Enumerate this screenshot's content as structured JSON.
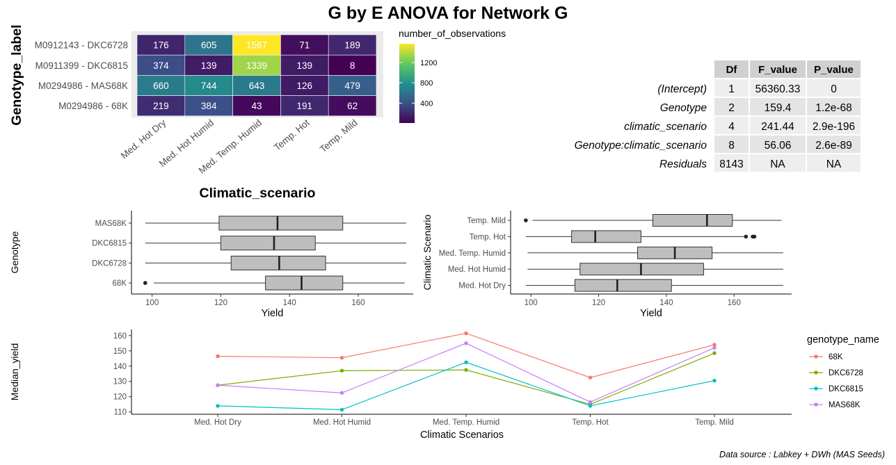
{
  "title": "G by E ANOVA for Network  G",
  "source_note": "Data source : Labkey + DWh (MAS Seeds)",
  "colors": {
    "box_fill": "#bebebe",
    "table_header": "#d0d0d0",
    "table_row_alt": "#e4e4e4",
    "table_row": "#eeeeee",
    "heat_panel_bg": "#ebebeb",
    "series": [
      "#f8766d",
      "#7cae00",
      "#00bfc4",
      "#c77cff"
    ]
  },
  "chart_data": [
    {
      "type": "heatmap",
      "xlabel": "Climatic_scenario",
      "ylabel": "Genotype_label",
      "x_categories": [
        "Med. Hot Dry",
        "Med. Hot Humid",
        "Med. Temp. Humid",
        "Temp. Hot",
        "Temp. Mild"
      ],
      "y_categories": [
        "M0912143 - DKC6728",
        "M0911399 - DKC6815",
        "M0294986 - MAS68K",
        "M0294986 - 68K"
      ],
      "values": [
        [
          176,
          605,
          1567,
          71,
          189
        ],
        [
          374,
          139,
          1339,
          139,
          8
        ],
        [
          660,
          744,
          643,
          126,
          479
        ],
        [
          219,
          384,
          43,
          191,
          62
        ]
      ],
      "colorbar": {
        "title": "number_of_observations",
        "ticks": [
          400,
          800,
          1200
        ],
        "range": [
          8,
          1567
        ]
      }
    },
    {
      "type": "table",
      "columns": [
        "",
        "Df",
        "F_value",
        "P_value"
      ],
      "rows": [
        [
          "(Intercept)",
          "1",
          "56360.33",
          "0"
        ],
        [
          "Genotype",
          "2",
          "159.4",
          "1.2e-68"
        ],
        [
          "climatic_scenario",
          "4",
          "241.44",
          "2.9e-196"
        ],
        [
          "Genotype:climatic_scenario",
          "8",
          "56.06",
          "2.6e-89"
        ],
        [
          "Residuals",
          "8143",
          "NA",
          "NA"
        ]
      ]
    },
    {
      "type": "box",
      "xlabel": "Yield",
      "ylabel": "Genotype",
      "xlim": [
        94,
        176
      ],
      "xticks": [
        100,
        120,
        140,
        160
      ],
      "boxes": [
        {
          "label": "MAS68K",
          "whisker_low": 98,
          "q1": 119.5,
          "median": 136.5,
          "q3": 155.5,
          "whisker_high": 174,
          "outliers": []
        },
        {
          "label": "DKC6815",
          "whisker_low": 98,
          "q1": 120,
          "median": 135.5,
          "q3": 147.5,
          "whisker_high": 174,
          "outliers": []
        },
        {
          "label": "DKC6728",
          "whisker_low": 98,
          "q1": 123,
          "median": 137,
          "q3": 150.5,
          "whisker_high": 174,
          "outliers": []
        },
        {
          "label": "68K",
          "whisker_low": 100.5,
          "q1": 133,
          "median": 143.5,
          "q3": 155.5,
          "whisker_high": 173.5,
          "outliers": [
            98
          ]
        }
      ]
    },
    {
      "type": "box",
      "xlabel": "Yield",
      "ylabel": "Climatic Scenario",
      "xlim": [
        94,
        177
      ],
      "xticks": [
        100,
        120,
        140,
        160
      ],
      "boxes": [
        {
          "label": "Temp. Mild",
          "whisker_low": 100.5,
          "q1": 136,
          "median": 152,
          "q3": 159.5,
          "whisker_high": 174,
          "outliers": [
            98.5
          ]
        },
        {
          "label": "Temp. Hot",
          "whisker_low": 98.5,
          "q1": 112,
          "median": 119,
          "q3": 132.5,
          "whisker_high": 163,
          "outliers": [
            163.5,
            165.5,
            166
          ]
        },
        {
          "label": "Med. Temp. Humid",
          "whisker_low": 99,
          "q1": 131.5,
          "median": 142.5,
          "q3": 153.5,
          "whisker_high": 174.5,
          "outliers": []
        },
        {
          "label": "Med. Hot Humid",
          "whisker_low": 99,
          "q1": 114.5,
          "median": 132.5,
          "q3": 151,
          "whisker_high": 174.5,
          "outliers": []
        },
        {
          "label": "Med. Hot Dry",
          "whisker_low": 98.5,
          "q1": 113,
          "median": 125.5,
          "q3": 141.5,
          "whisker_high": 174.5,
          "outliers": []
        }
      ]
    },
    {
      "type": "line",
      "xlabel": "Climatic Scenarios",
      "ylabel": "Median_yield",
      "categories": [
        "Med. Hot Dry",
        "Med. Hot Humid",
        "Med. Temp. Humid",
        "Temp. Hot",
        "Temp. Mild"
      ],
      "ylim": [
        108.5,
        164
      ],
      "yticks": [
        110,
        120,
        130,
        140,
        150,
        160
      ],
      "legend_title": "genotype_name",
      "legend_position": "right",
      "series": [
        {
          "name": "68K",
          "values": [
            146.5,
            145.5,
            161.5,
            132.5,
            154
          ]
        },
        {
          "name": "DKC6728",
          "values": [
            127.5,
            137,
            137.5,
            115,
            148.5
          ]
        },
        {
          "name": "DKC6815",
          "values": [
            114,
            111.5,
            142.5,
            114,
            130.5
          ]
        },
        {
          "name": "MAS68K",
          "values": [
            127.5,
            122.5,
            155,
            116.5,
            152
          ]
        }
      ]
    }
  ]
}
